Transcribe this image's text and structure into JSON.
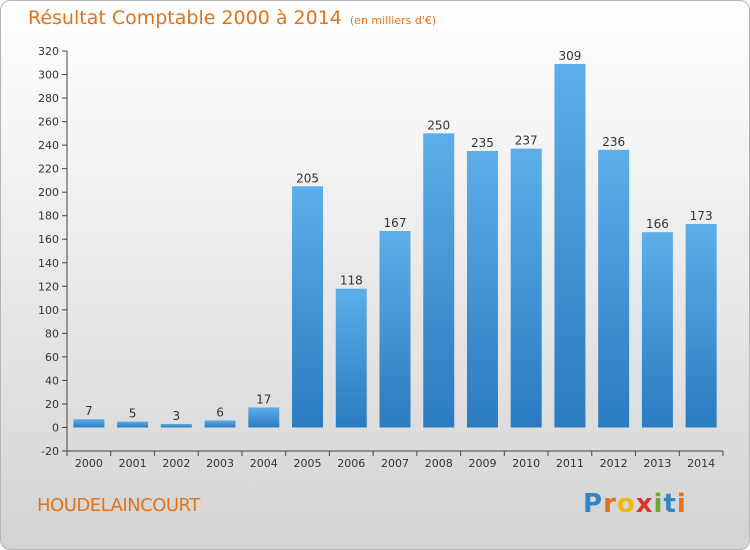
{
  "chart_data": {
    "type": "bar",
    "title": "Résultat Comptable 2000 à 2014",
    "subtitle": "(en milliers d'€)",
    "xlabel": "",
    "ylabel": "",
    "categories": [
      "2000",
      "2001",
      "2002",
      "2003",
      "2004",
      "2005",
      "2006",
      "2007",
      "2008",
      "2009",
      "2010",
      "2011",
      "2012",
      "2013",
      "2014"
    ],
    "values": [
      7,
      5,
      3,
      6,
      17,
      205,
      118,
      167,
      250,
      235,
      237,
      309,
      236,
      166,
      173
    ],
    "ylim": [
      -20,
      320
    ],
    "yticks": [
      -20,
      0,
      20,
      40,
      60,
      80,
      100,
      120,
      140,
      160,
      180,
      200,
      220,
      240,
      260,
      280,
      300,
      320
    ],
    "grid": false,
    "colors": {
      "bar_light": "#5daee8",
      "bar_dark": "#2a7bc0",
      "text": "#333333",
      "accent": "#e0731c"
    }
  },
  "footer": {
    "town": "HOUDELAINCOURT"
  },
  "logo": {
    "letters": [
      {
        "ch": "P",
        "color": "#2f86c9"
      },
      {
        "ch": "r",
        "color": "#e0731c"
      },
      {
        "ch": "o",
        "color": "#f2b705"
      },
      {
        "ch": "x",
        "color": "#d9362b"
      },
      {
        "ch": "i",
        "color": "#6aa832"
      },
      {
        "ch": "t",
        "color": "#2f86c9"
      },
      {
        "ch": "i",
        "color": "#e0731c"
      }
    ]
  }
}
